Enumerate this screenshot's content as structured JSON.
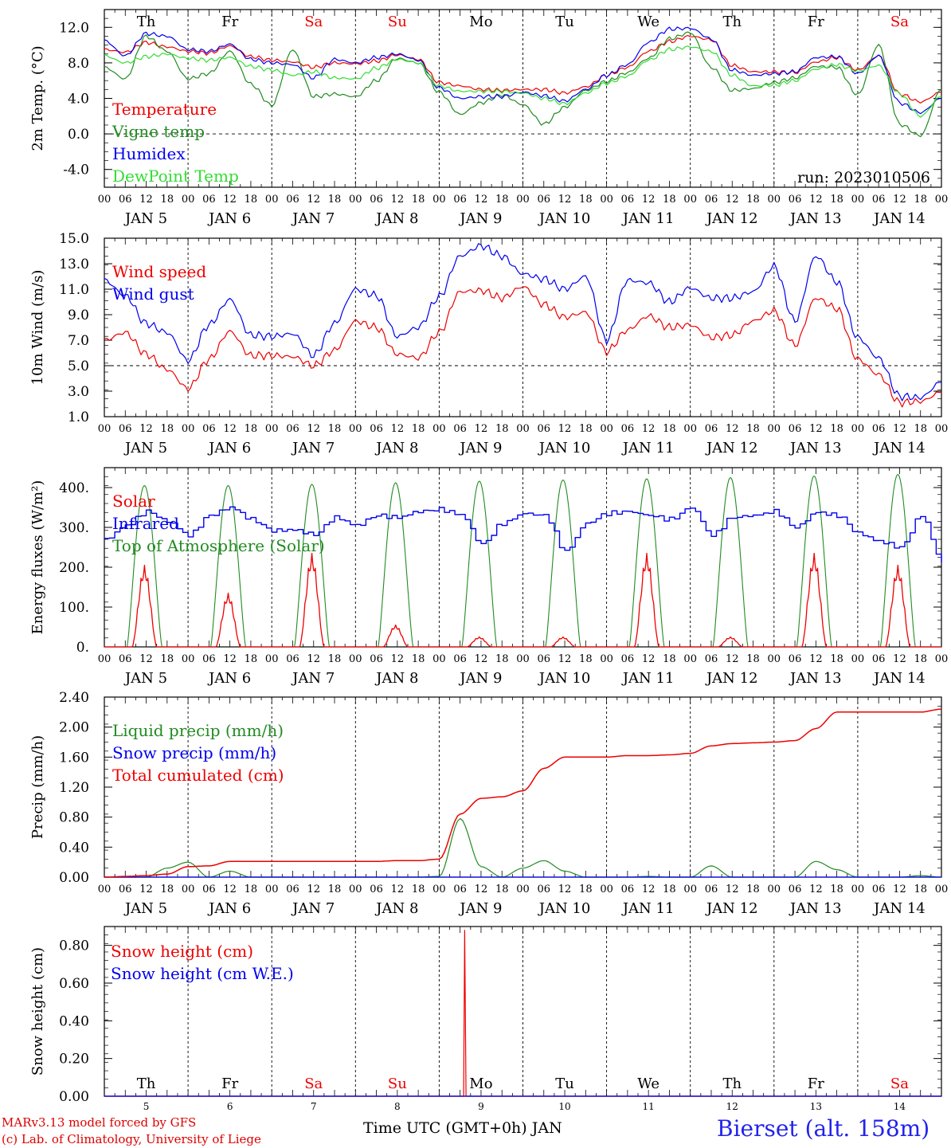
{
  "run_label": "run: 2023010506",
  "footer": {
    "model": "MARv3.13 model forced by GFS",
    "credit": "(c) Lab. of Climatology, University of Liege",
    "xlabel": "Time UTC (GMT+0h) JAN",
    "station": "Bierset (alt. 158m)"
  },
  "colors": {
    "red": "#ee0000",
    "green": "#228b22",
    "blue": "#0000ee",
    "lightgreen": "#33dd33"
  },
  "axis": {
    "days": [
      5,
      6,
      7,
      8,
      9,
      10,
      11,
      12,
      13,
      14
    ],
    "day_names": [
      "Th",
      "Fr",
      "Sa",
      "Su",
      "Mo",
      "Tu",
      "We",
      "Th",
      "Fr",
      "Sa"
    ],
    "weekend_days": [
      "Sa",
      "Su"
    ],
    "hour_ticks": [
      "00",
      "06",
      "12",
      "18"
    ],
    "month": "JAN",
    "x_range_hours": [
      0,
      240
    ]
  },
  "chart_data": [
    {
      "type": "line",
      "ylabel": "2m Temp. (°C)",
      "ylim": [
        -6.0,
        14.0
      ],
      "yticks": [
        "12.0",
        "8.0",
        "4.0",
        "0.0",
        "-4.0"
      ],
      "hline": 0.0,
      "x_hours": [
        0,
        6,
        12,
        18,
        24,
        30,
        36,
        42,
        48,
        54,
        60,
        66,
        72,
        78,
        84,
        90,
        96,
        102,
        108,
        114,
        120,
        126,
        132,
        138,
        144,
        150,
        156,
        162,
        168,
        174,
        180,
        186,
        192,
        198,
        204,
        210,
        216,
        222,
        228,
        234,
        240
      ],
      "series": [
        {
          "name": "Temperature",
          "color": "#ee0000",
          "values": [
            9.5,
            9.2,
            10.3,
            9.8,
            9.3,
            9.1,
            9.9,
            8.7,
            8.3,
            8.1,
            7.5,
            8.0,
            7.9,
            8.2,
            8.9,
            8.4,
            5.8,
            5.4,
            5.0,
            4.9,
            5.0,
            5.0,
            4.6,
            5.3,
            6.6,
            7.5,
            9.3,
            10.4,
            11.0,
            10.6,
            7.7,
            7.0,
            7.0,
            6.9,
            8.1,
            8.6,
            7.2,
            8.8,
            4.5,
            3.6,
            4.7
          ]
        },
        {
          "name": "Vigne temp",
          "color": "#228b22",
          "values": [
            7.5,
            6.2,
            11.0,
            9.3,
            6.2,
            6.8,
            9.3,
            5.6,
            3.2,
            9.5,
            4.2,
            4.5,
            4.2,
            6.0,
            8.5,
            8.0,
            4.7,
            2.2,
            3.5,
            4.4,
            3.3,
            1.1,
            3.0,
            4.9,
            5.9,
            6.9,
            8.5,
            10.7,
            11.4,
            7.5,
            4.9,
            5.1,
            5.8,
            6.3,
            7.6,
            7.5,
            4.4,
            10.0,
            1.1,
            -0.2,
            5.0
          ]
        },
        {
          "name": "Humidex",
          "color": "#0000ee",
          "values": [
            10.5,
            8.8,
            11.3,
            11.0,
            9.5,
            9.3,
            10.1,
            8.4,
            8.0,
            7.8,
            6.3,
            8.4,
            8.0,
            8.6,
            9.0,
            8.3,
            5.2,
            4.0,
            4.2,
            4.2,
            4.7,
            4.3,
            3.7,
            5.0,
            6.6,
            7.8,
            10.3,
            11.8,
            11.9,
            10.7,
            7.2,
            6.6,
            6.8,
            7.0,
            8.6,
            8.7,
            6.8,
            8.8,
            3.5,
            2.4,
            4.0
          ]
        },
        {
          "name": "DewPoint Temp",
          "color": "#33dd33",
          "values": [
            8.8,
            8.0,
            8.7,
            9.0,
            8.5,
            8.3,
            8.6,
            7.6,
            7.2,
            6.6,
            7.0,
            6.3,
            6.2,
            7.4,
            8.4,
            8.0,
            5.4,
            4.8,
            4.8,
            4.8,
            4.6,
            4.0,
            3.4,
            4.6,
            5.7,
            6.5,
            8.3,
            9.5,
            9.8,
            9.3,
            6.6,
            5.4,
            5.5,
            6.0,
            7.3,
            7.8,
            7.1,
            7.7,
            4.5,
            2.0,
            4.2
          ]
        }
      ]
    },
    {
      "type": "line",
      "ylabel": "10m Wind (m/s)",
      "ylim": [
        1.0,
        15.0
      ],
      "yticks": [
        "15.0",
        "13.0",
        "11.0",
        "9.0",
        "7.0",
        "5.0",
        "3.0",
        "1.0"
      ],
      "hline": 5.0,
      "x_hours": [
        0,
        6,
        12,
        18,
        24,
        30,
        36,
        42,
        48,
        54,
        60,
        66,
        72,
        78,
        84,
        90,
        96,
        102,
        108,
        114,
        120,
        126,
        132,
        138,
        144,
        150,
        156,
        162,
        168,
        174,
        180,
        186,
        192,
        198,
        204,
        210,
        216,
        222,
        228,
        234,
        240
      ],
      "series": [
        {
          "name": "Wind speed",
          "color": "#ee0000",
          "values": [
            7.0,
            7.6,
            5.9,
            4.7,
            3.2,
            5.5,
            7.7,
            5.8,
            5.8,
            5.7,
            5.0,
            6.2,
            8.5,
            8.0,
            5.9,
            5.6,
            7.6,
            10.8,
            10.9,
            10.3,
            11.2,
            9.8,
            8.8,
            9.2,
            6.1,
            7.8,
            8.9,
            8.0,
            8.2,
            7.2,
            7.4,
            8.5,
            9.3,
            6.6,
            10.3,
            9.5,
            5.5,
            4.3,
            2.1,
            2.2,
            2.9
          ]
        },
        {
          "name": "Wind gust",
          "color": "#0000ee",
          "values": [
            11.7,
            10.5,
            8.3,
            7.6,
            5.4,
            8.2,
            10.2,
            7.4,
            7.3,
            7.5,
            5.8,
            8.3,
            11.0,
            10.5,
            7.3,
            8.0,
            10.4,
            13.6,
            14.4,
            13.6,
            12.2,
            11.8,
            11.0,
            12.0,
            7.0,
            11.7,
            11.5,
            10.0,
            11.1,
            10.3,
            10.3,
            10.8,
            12.8,
            8.5,
            13.6,
            11.6,
            7.2,
            5.6,
            2.6,
            2.5,
            3.7
          ]
        }
      ]
    },
    {
      "type": "line",
      "ylabel": "Energy fluxes (W/m²)",
      "ylim": [
        0,
        450
      ],
      "yticks": [
        "400.",
        "300.",
        "200.",
        "100.",
        "0."
      ],
      "solar_peak_hour": 11.5,
      "daily_peaks": {
        "Top of Atmosphere (Solar)": [
          405,
          405,
          408,
          412,
          416,
          419,
          422,
          425,
          429,
          433
        ],
        "Solar": [
          205,
          135,
          235,
          55,
          25,
          25,
          235,
          25,
          235,
          205
        ]
      },
      "series": [
        {
          "name": "Solar",
          "color": "#ee0000"
        },
        {
          "name": "Infrared",
          "color": "#0000ee",
          "x_hours": [
            0,
            6,
            12,
            18,
            24,
            30,
            36,
            42,
            48,
            54,
            60,
            66,
            72,
            78,
            84,
            90,
            96,
            102,
            108,
            114,
            120,
            126,
            132,
            138,
            144,
            150,
            156,
            162,
            168,
            174,
            180,
            186,
            192,
            198,
            204,
            210,
            216,
            222,
            228,
            234,
            240
          ],
          "values": [
            270,
            305,
            340,
            315,
            280,
            330,
            350,
            320,
            292,
            294,
            282,
            325,
            305,
            330,
            325,
            340,
            345,
            332,
            258,
            310,
            335,
            330,
            240,
            310,
            335,
            340,
            330,
            320,
            350,
            280,
            325,
            330,
            340,
            300,
            338,
            330,
            285,
            265,
            250,
            330,
            212
          ]
        },
        {
          "name": "Top of Atmosphere (Solar)",
          "color": "#228b22"
        }
      ]
    },
    {
      "type": "line",
      "ylabel": "Precip (mm/h)",
      "ylim": [
        0.0,
        2.4
      ],
      "yticks": [
        "2.40",
        "2.00",
        "1.60",
        "1.20",
        "0.80",
        "0.40",
        "0.00"
      ],
      "x_hours": [
        0,
        6,
        12,
        18,
        24,
        30,
        36,
        42,
        48,
        54,
        60,
        66,
        72,
        78,
        84,
        90,
        96,
        102,
        108,
        114,
        120,
        126,
        132,
        138,
        144,
        150,
        156,
        162,
        168,
        174,
        180,
        186,
        192,
        198,
        204,
        210,
        216,
        222,
        228,
        234,
        240
      ],
      "series": [
        {
          "name": "Liquid precip (mm/h)",
          "color": "#228b22",
          "values": [
            0,
            0,
            0,
            0.12,
            0.2,
            0,
            0.08,
            0,
            0,
            0,
            0,
            0,
            0,
            0,
            0,
            0,
            0.01,
            0.78,
            0.14,
            0,
            0.12,
            0.22,
            0.08,
            0,
            0,
            0,
            0.01,
            0,
            0,
            0.15,
            0,
            0,
            0,
            0,
            0.21,
            0.1,
            0,
            0,
            0,
            0.02,
            0
          ]
        },
        {
          "name": "Snow precip (mm/h)",
          "color": "#0000ee",
          "values": [
            0,
            0,
            0,
            0,
            0,
            0,
            0,
            0,
            0,
            0,
            0,
            0,
            0,
            0,
            0,
            0,
            0,
            0,
            0,
            0,
            0,
            0,
            0,
            0,
            0,
            0,
            0,
            0,
            0,
            0,
            0,
            0,
            0,
            0,
            0,
            0,
            0,
            0,
            0,
            0,
            0
          ]
        },
        {
          "name": "Total cumulated (cm)",
          "color": "#ee0000",
          "values": [
            0,
            0.01,
            0.02,
            0.04,
            0.14,
            0.15,
            0.21,
            0.21,
            0.21,
            0.21,
            0.21,
            0.21,
            0.21,
            0.21,
            0.22,
            0.22,
            0.24,
            0.84,
            1.05,
            1.07,
            1.15,
            1.45,
            1.6,
            1.6,
            1.6,
            1.62,
            1.62,
            1.63,
            1.65,
            1.75,
            1.78,
            1.79,
            1.8,
            1.82,
            1.98,
            2.2,
            2.2,
            2.2,
            2.2,
            2.2,
            2.24
          ]
        }
      ]
    },
    {
      "type": "line",
      "ylabel": "Snow height (cm)",
      "ylim": [
        0.0,
        0.9
      ],
      "yticks": [
        "0.80",
        "0.60",
        "0.40",
        "0.20",
        "0.00"
      ],
      "series": [
        {
          "name": "Snow height (cm)",
          "color": "#ee0000",
          "x_hours": [
            0,
            103,
            103.3,
            103.7,
            240
          ],
          "values": [
            0,
            0,
            0.88,
            0,
            0
          ]
        },
        {
          "name": "Snow height (cm W.E.)",
          "color": "#0000ee",
          "x_hours": [
            0,
            240
          ],
          "values": [
            0,
            0
          ]
        }
      ]
    }
  ]
}
